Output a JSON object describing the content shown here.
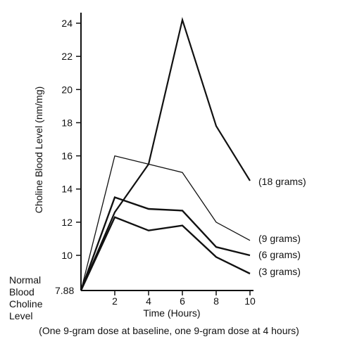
{
  "chart_data": {
    "type": "line",
    "title": "",
    "xlabel": "Time (Hours)",
    "ylabel": "Choline Blood Level (nm/mg)",
    "xlim": [
      0,
      10
    ],
    "ylim": [
      7.88,
      24.5
    ],
    "x_ticks": [
      2,
      4,
      6,
      8,
      10
    ],
    "y_ticks": [
      10,
      12,
      14,
      16,
      18,
      20,
      22,
      24
    ],
    "baseline": {
      "value": 7.88,
      "value_label": "7.88",
      "label_lines": [
        "Normal",
        "Blood",
        "Choline",
        "Level"
      ]
    },
    "grid": false,
    "legend": "inline labels at line ends",
    "series": [
      {
        "name": "(18 grams)",
        "x": [
          0,
          2,
          4,
          6,
          8,
          10
        ],
        "y": [
          7.88,
          12.6,
          15.5,
          24.2,
          17.8,
          14.5
        ],
        "color": "#111111"
      },
      {
        "name": "(9 grams)",
        "x": [
          0,
          2,
          4,
          6,
          8,
          10
        ],
        "y": [
          7.88,
          16.0,
          15.5,
          15.0,
          12.0,
          10.9
        ],
        "color": "#111111"
      },
      {
        "name": "(6 grams)",
        "x": [
          0,
          2,
          4,
          6,
          8,
          10
        ],
        "y": [
          7.88,
          13.5,
          12.8,
          12.7,
          10.5,
          10.0
        ],
        "color": "#111111"
      },
      {
        "name": "(3 grams)",
        "x": [
          0,
          2,
          4,
          6,
          8,
          10
        ],
        "y": [
          7.88,
          12.3,
          11.5,
          11.8,
          9.9,
          8.9
        ],
        "color": "#111111"
      }
    ]
  },
  "caption": "(One 9-gram dose at baseline, one 9-gram dose at 4 hours)"
}
